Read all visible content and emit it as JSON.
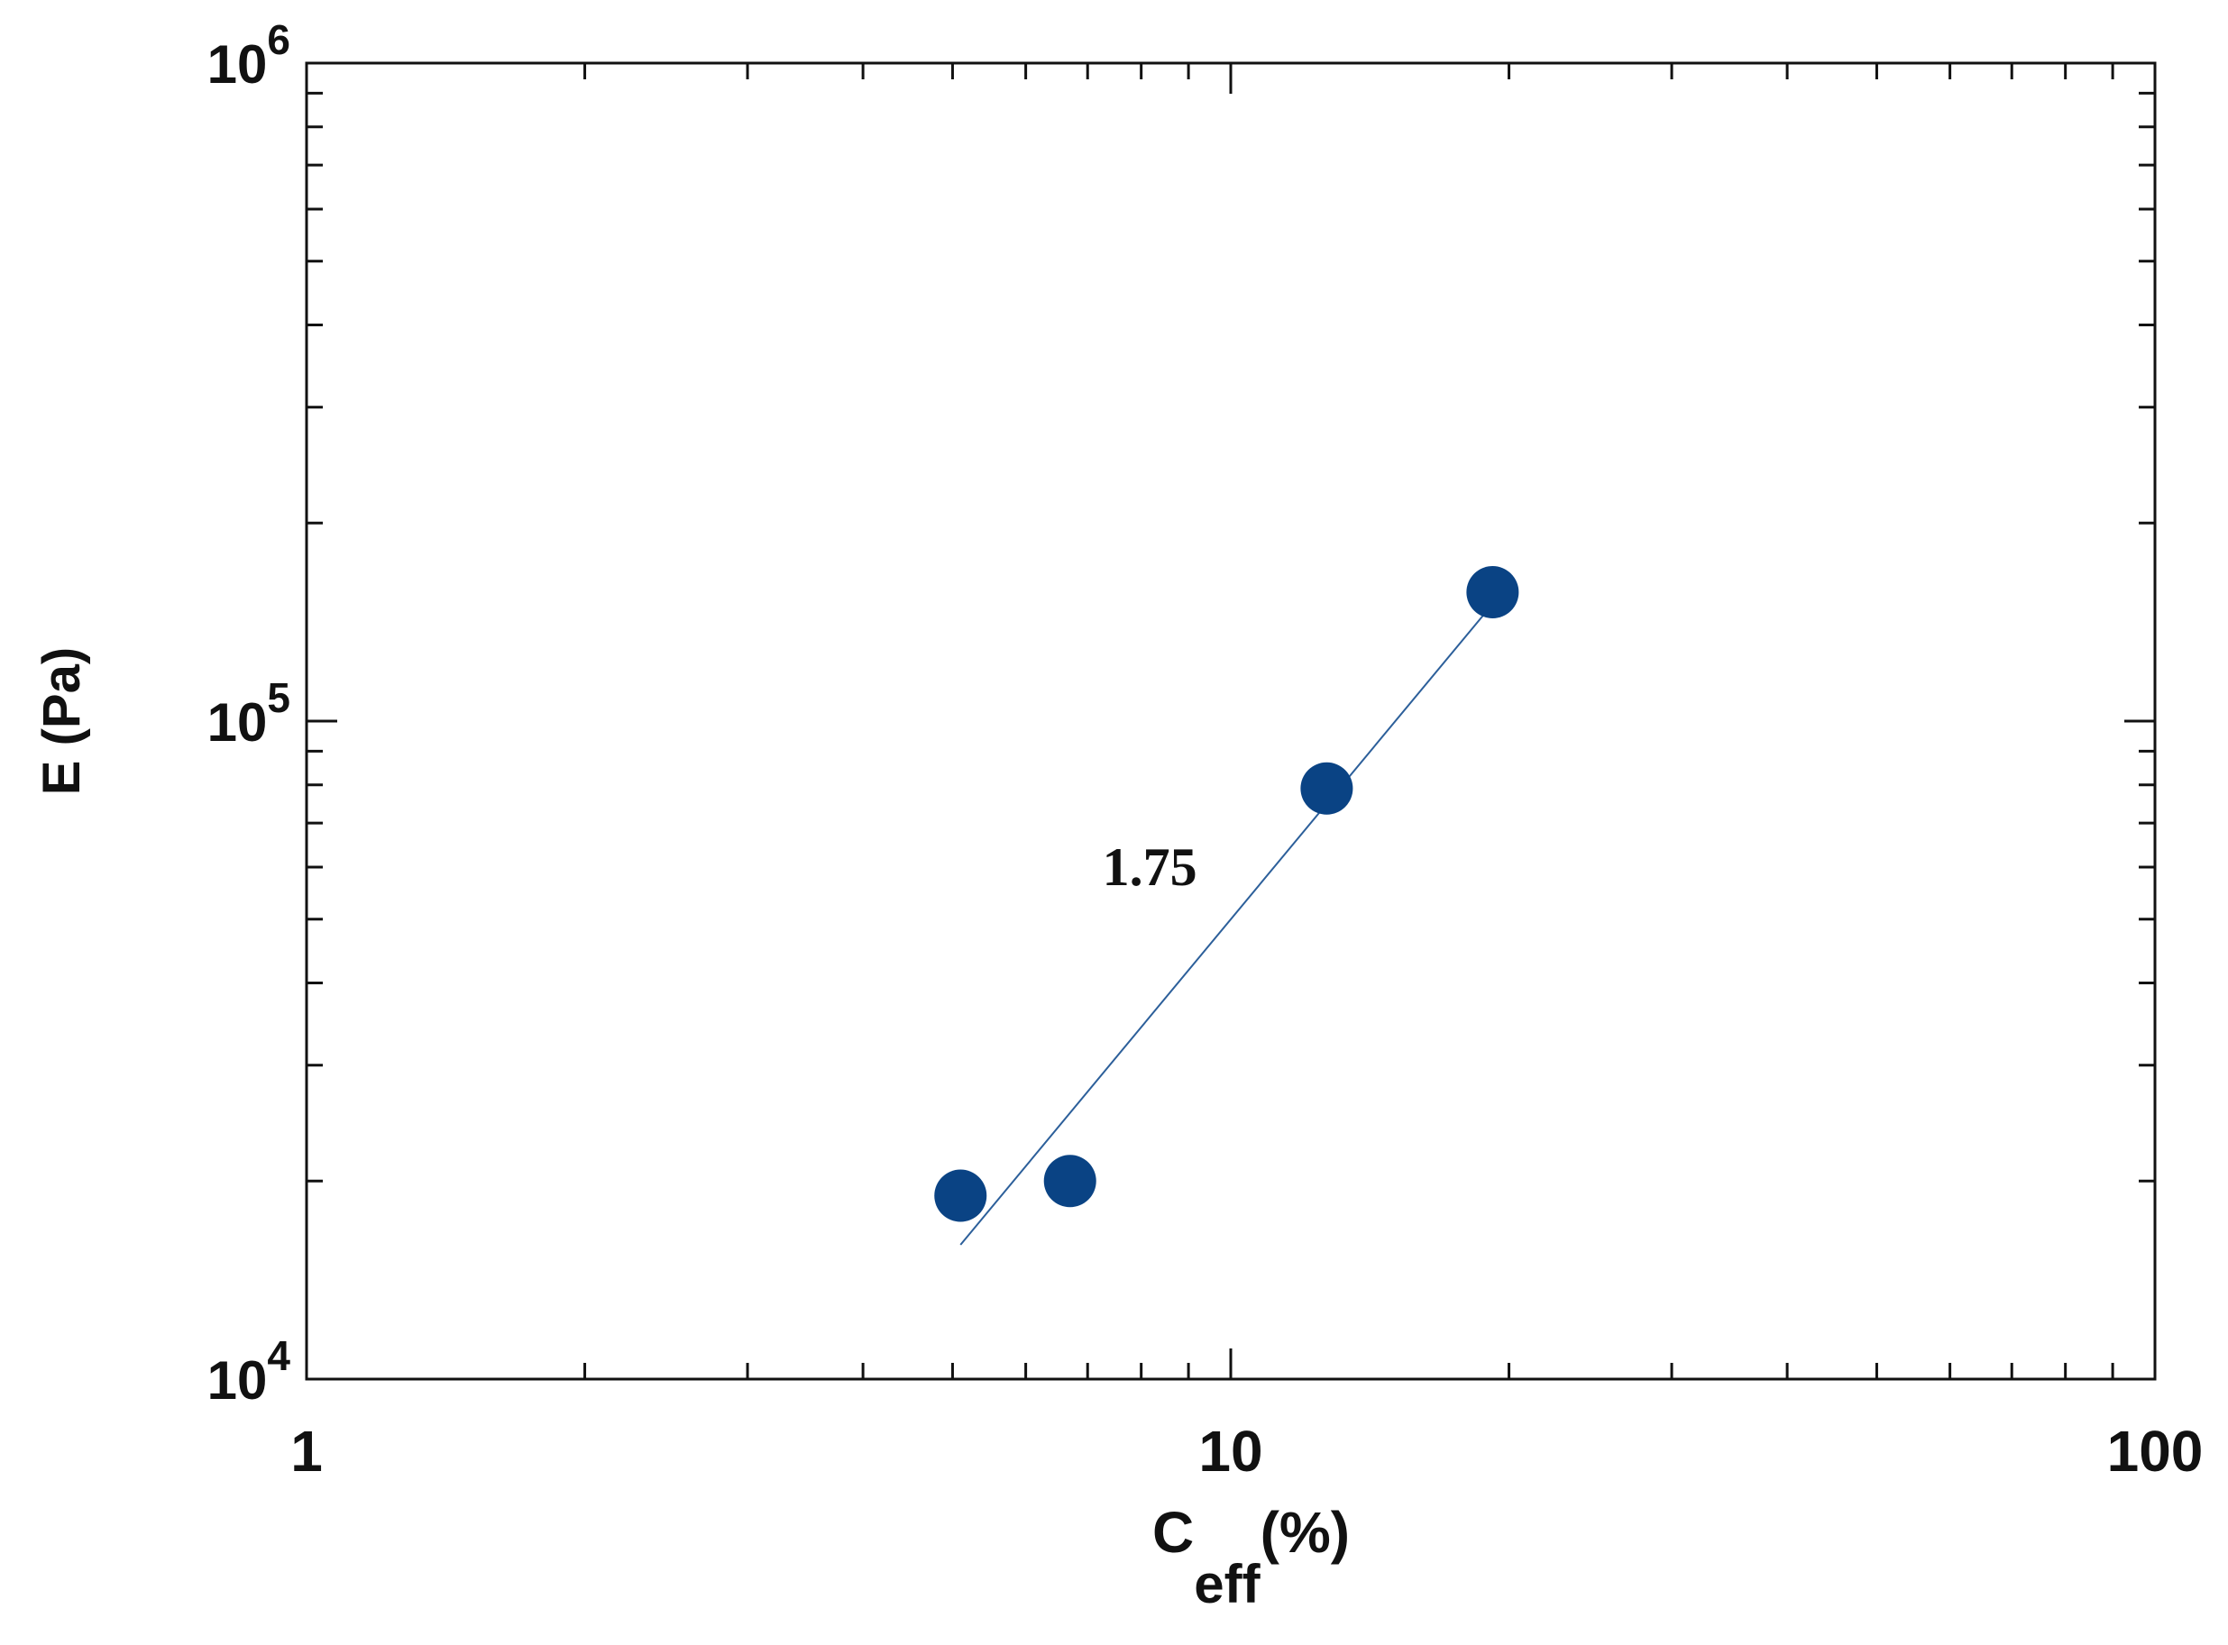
{
  "chart_data": {
    "type": "scatter",
    "x_scale": "log",
    "y_scale": "log",
    "xlim": [
      1,
      100
    ],
    "ylim": [
      10000,
      1000000
    ],
    "grid": false,
    "legend": "none",
    "xlabel_main": "C",
    "xlabel_sub": "eff",
    "xlabel_suffix": "(%)",
    "ylabel": "E (Pa)",
    "x_ticks": [
      {
        "value": 1,
        "label": "1"
      },
      {
        "value": 10,
        "label": "10"
      },
      {
        "value": 100,
        "label": "100"
      }
    ],
    "y_ticks": [
      {
        "value": 10000,
        "base": "10",
        "exp": "4"
      },
      {
        "value": 100000,
        "base": "10",
        "exp": "5"
      },
      {
        "value": 1000000,
        "base": "10",
        "exp": "6"
      }
    ],
    "points": [
      {
        "x": 5.1,
        "y": 19000
      },
      {
        "x": 6.7,
        "y": 20000
      },
      {
        "x": 12.7,
        "y": 79000
      },
      {
        "x": 19.2,
        "y": 157000
      }
    ],
    "fit_line": {
      "x": [
        5.1,
        19.0
      ],
      "y": [
        16000,
        148000
      ]
    },
    "annotation": {
      "text": "1.75",
      "x": 8.5,
      "y": 60000
    },
    "colors": {
      "marker": "#0a4384",
      "line": "#2c5f9a",
      "axis": "#111111"
    }
  }
}
